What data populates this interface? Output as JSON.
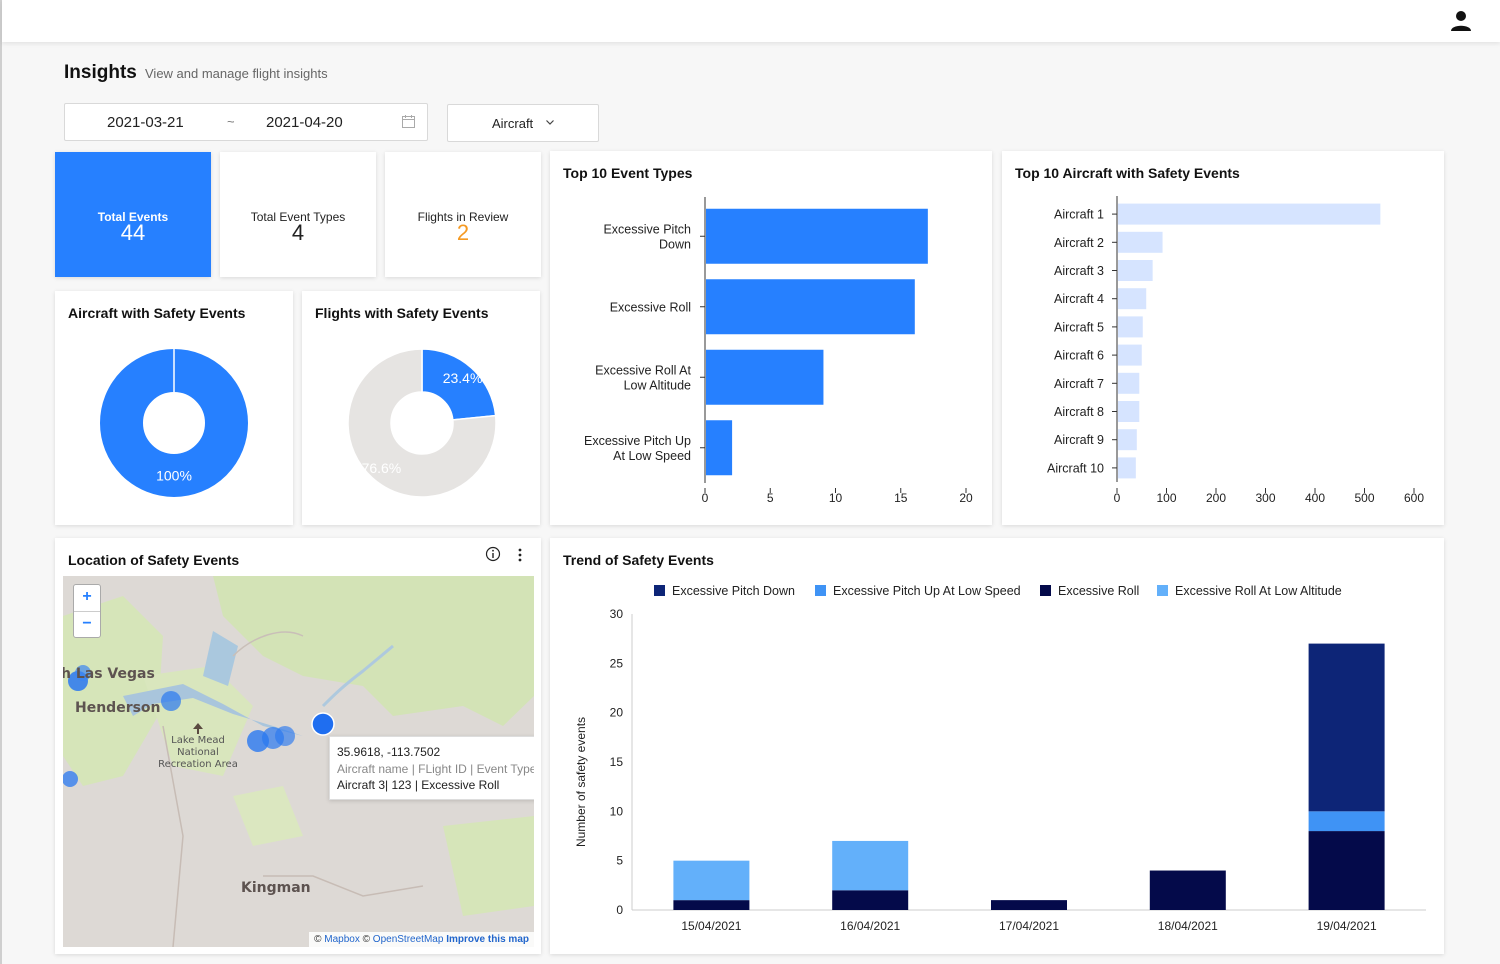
{
  "header": {
    "user_icon": "user-icon"
  },
  "page": {
    "title": "Insights",
    "subtitle": "View and manage flight insights"
  },
  "filters": {
    "date_start": "2021-03-21",
    "date_separator": "~",
    "date_end": "2021-04-20",
    "calendar_icon": "calendar-icon",
    "aircraft_label": "Aircraft",
    "aircraft_icon": "chevron-down-icon"
  },
  "kpis": [
    {
      "label": "Total Events",
      "value": "44",
      "color": "#2680ff"
    },
    {
      "label": "Total Event Types",
      "value": "4"
    },
    {
      "label": "Flights in Review",
      "value": "2",
      "color": "#f59a23"
    }
  ],
  "cards": {
    "aircraft_safety": {
      "title": "Aircraft with Safety Events"
    },
    "flights_safety": {
      "title": "Flights with Safety Events"
    },
    "top_event_types": {
      "title": "Top 10 Event Types"
    },
    "top_aircraft": {
      "title": "Top 10 Aircraft with Safety Events"
    },
    "location": {
      "title": "Location of Safety Events",
      "info_icon": "info-icon",
      "more_icon": "more-vertical-icon"
    },
    "trend": {
      "title": "Trend of Safety Events"
    }
  },
  "map": {
    "zoom_in": "+",
    "zoom_out": "−",
    "labels": {
      "las_vegas": "h Las Vegas",
      "henderson": "Henderson",
      "lake_mead": "Lake Mead National Recreation Area",
      "kingman": "Kingman"
    },
    "tooltip": {
      "coords": "35.9618, -113.7502",
      "header": "Aircraft name | FLight ID | Event Type:",
      "value": "Aircraft 3| 123 | Excessive Roll"
    },
    "attribution": {
      "copy1": "©",
      "mapbox": "Mapbox",
      "copy2": "©",
      "osm": "OpenStreetMap",
      "improve": "Improve this map"
    }
  },
  "chart_data": [
    {
      "type": "pie",
      "title": "Aircraft with Safety Events",
      "slices": [
        {
          "label": "100%",
          "value": 100,
          "color": "#2680ff"
        }
      ]
    },
    {
      "type": "pie",
      "title": "Flights with Safety Events",
      "slices": [
        {
          "label": "23.4%",
          "value": 23.4,
          "color": "#2680ff"
        },
        {
          "label": "76.6%",
          "value": 76.6,
          "color": "#e6e4e2"
        }
      ]
    },
    {
      "type": "bar",
      "orientation": "horizontal",
      "title": "Top 10 Event Types",
      "categories": [
        "Excessive Pitch Down",
        "Excessive Roll",
        "Excessive Roll At Low Altitude",
        "Excessive Pitch Up At Low Speed"
      ],
      "values": [
        17,
        16,
        9,
        2
      ],
      "xlim": [
        0,
        20
      ],
      "ticks": [
        0,
        5,
        10,
        15,
        20
      ],
      "color": "#2680ff"
    },
    {
      "type": "bar",
      "orientation": "horizontal",
      "title": "Top 10 Aircraft with Safety Events",
      "categories": [
        "Aircraft 1",
        "Aircraft 2",
        "Aircraft 3",
        "Aircraft 4",
        "Aircraft 5",
        "Aircraft 6",
        "Aircraft 7",
        "Aircraft 8",
        "Aircraft 9",
        "Aircraft 10"
      ],
      "values": [
        530,
        90,
        70,
        57,
        50,
        48,
        43,
        43,
        38,
        36
      ],
      "xlim": [
        0,
        600
      ],
      "ticks": [
        0,
        100,
        200,
        300,
        400,
        500,
        600
      ],
      "color": "#d6e4ff"
    },
    {
      "type": "bar",
      "stacked": true,
      "title": "Trend of Safety Events",
      "ylabel": "Number of safety events",
      "ylim": [
        0,
        30
      ],
      "ticks": [
        0,
        5,
        10,
        15,
        20,
        25,
        30
      ],
      "categories": [
        "15/04/2021",
        "16/04/2021",
        "17/04/2021",
        "18/04/2021",
        "19/04/2021"
      ],
      "legend_position": "top",
      "series": [
        {
          "name": "Excessive Pitch Down",
          "color": "#0d2577",
          "values": [
            0,
            0,
            0,
            0,
            17
          ]
        },
        {
          "name": "Excessive Pitch Up At Low Speed",
          "color": "#3f93f5",
          "values": [
            0,
            0,
            0,
            0,
            2
          ]
        },
        {
          "name": "Excessive Roll",
          "color": "#040a4a",
          "values": [
            1,
            2,
            1,
            4,
            8
          ]
        },
        {
          "name": "Excessive Roll At Low Altitude",
          "color": "#63b0fa",
          "values": [
            4,
            5,
            0,
            0,
            0
          ]
        }
      ]
    }
  ]
}
